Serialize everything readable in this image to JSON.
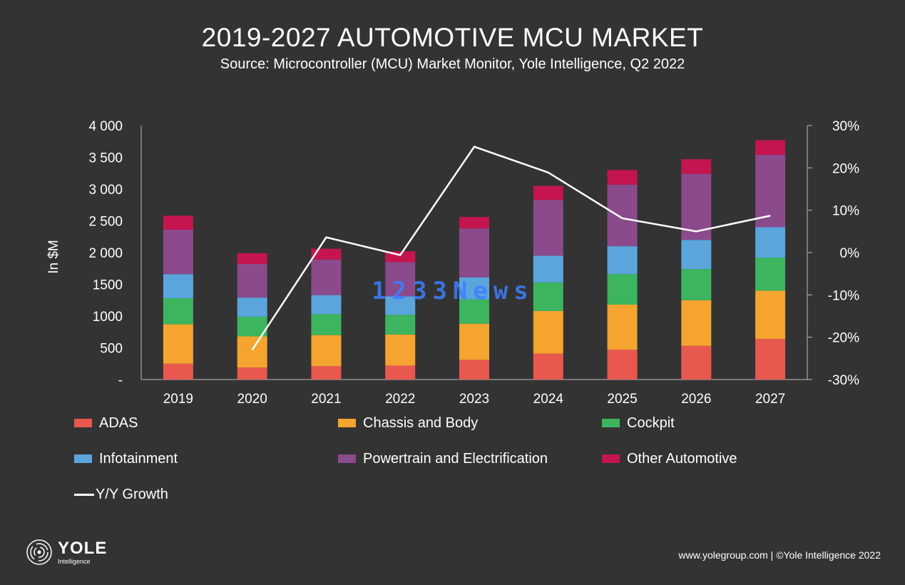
{
  "header": {
    "title": "2019-2027 AUTOMOTIVE MCU MARKET",
    "subtitle": "Source: Microcontroller (MCU) Market Monitor, Yole Intelligence, Q2 2022"
  },
  "chart_data": {
    "type": "bar",
    "stacked": true,
    "categories": [
      "2019",
      "2020",
      "2021",
      "2022",
      "2023",
      "2024",
      "2025",
      "2026",
      "2027"
    ],
    "series": [
      {
        "name": "ADAS",
        "color": "#e8584f",
        "values": [
          250,
          190,
          210,
          220,
          310,
          410,
          470,
          530,
          640
        ]
      },
      {
        "name": "Chassis and Body",
        "color": "#f4a42f",
        "values": [
          620,
          490,
          490,
          490,
          570,
          670,
          710,
          720,
          760
        ]
      },
      {
        "name": "Cockpit",
        "color": "#3cb55e",
        "values": [
          410,
          310,
          330,
          310,
          380,
          450,
          480,
          490,
          520
        ]
      },
      {
        "name": "Infotainment",
        "color": "#5ba5dd",
        "values": [
          380,
          300,
          300,
          290,
          350,
          420,
          440,
          460,
          480
        ]
      },
      {
        "name": "Powertrain and Electrification",
        "color": "#8a4a8c",
        "values": [
          700,
          530,
          560,
          540,
          770,
          880,
          970,
          1040,
          1140
        ]
      },
      {
        "name": "Other Automotive",
        "color": "#c4154f",
        "values": [
          220,
          170,
          170,
          170,
          180,
          220,
          230,
          230,
          230
        ]
      }
    ],
    "line_series": {
      "name": "Y/Y Growth",
      "color": "#ffffff",
      "axis": "right",
      "values": [
        null,
        -23,
        3.6,
        -0.6,
        25,
        18.9,
        8.1,
        5,
        8.7
      ]
    },
    "ylabel": "In $M",
    "ylim": [
      0,
      4000
    ],
    "y_ticks": [
      "-",
      "500",
      "1000",
      "1500",
      "2 000",
      "2 500",
      "3 000",
      "3 500",
      "4 000"
    ],
    "y2lim": [
      -30,
      30
    ],
    "y2_ticks": [
      "-30%",
      "-20%",
      "-10%",
      "0%",
      "10%",
      "20%",
      "30%"
    ],
    "legend_position": "bottom",
    "grid": false
  },
  "watermark": "1233News",
  "logo": {
    "name": "YOLE",
    "sub": "Intelligence"
  },
  "footer": "www.yolegroup.com | ©Yole Intelligence 2022"
}
